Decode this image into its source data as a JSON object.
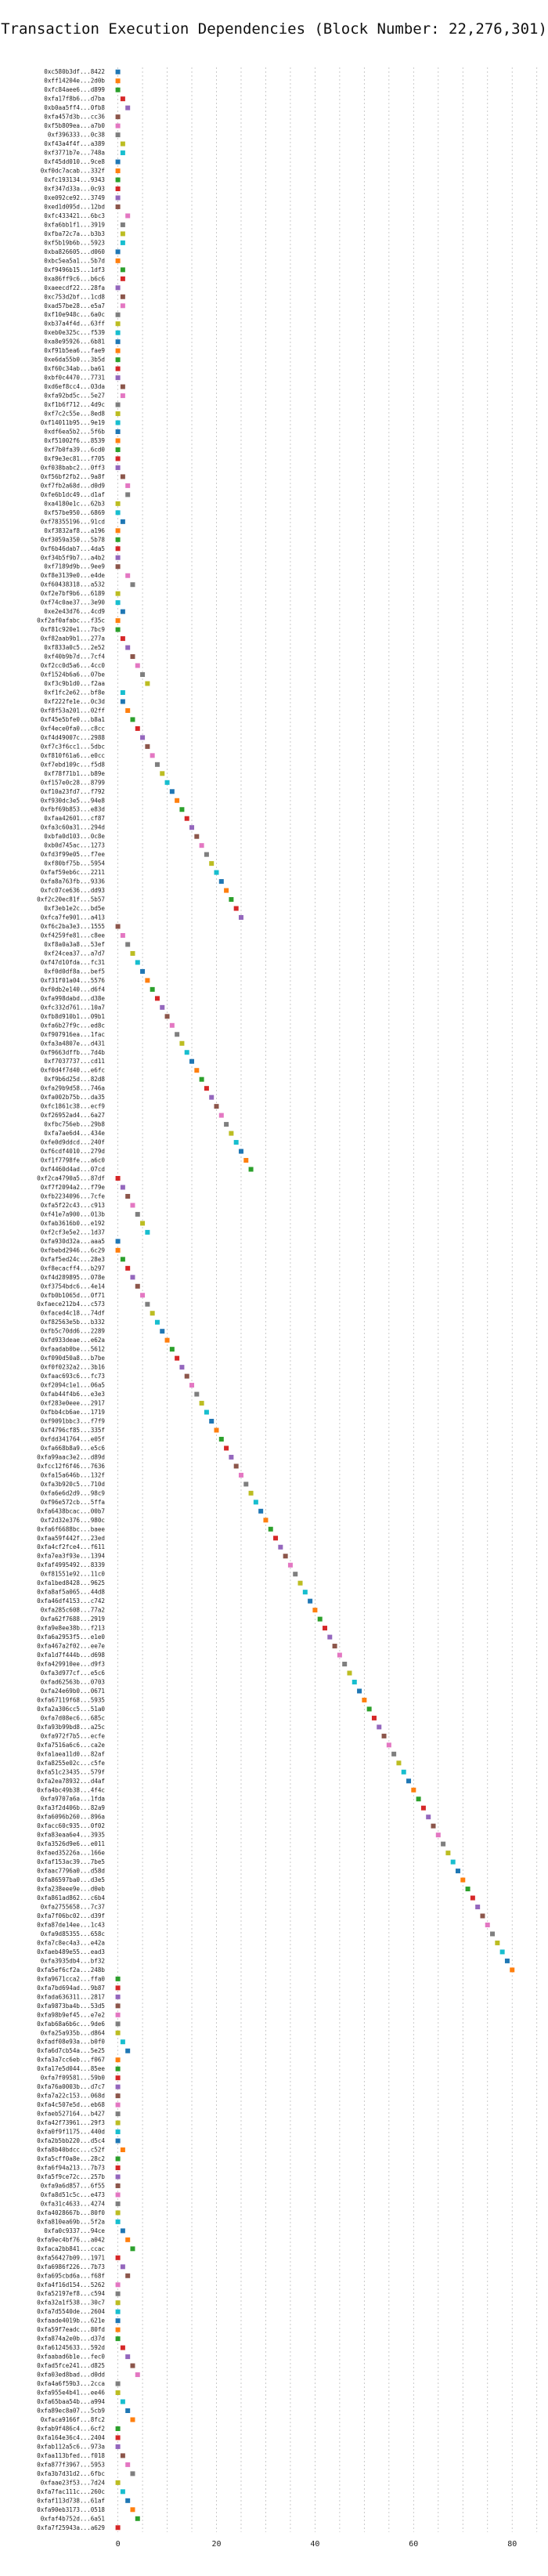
{
  "chart_data": {
    "type": "scatter",
    "title": "Transaction Execution Dependencies (Block Number: 22,276,301)",
    "xlabel": "",
    "ylabel": "",
    "xlim": [
      -2,
      86
    ],
    "xticks": [
      0,
      20,
      40,
      60,
      80
    ],
    "grid": true,
    "legend": "none",
    "colors": [
      "#1f77b4",
      "#ff7f0e",
      "#2ca02c",
      "#d62728",
      "#9467bd",
      "#8c564b",
      "#e377c2",
      "#7f7f7f",
      "#bcbd22",
      "#17becf"
    ],
    "categories": [
      "0xc580b3df...8422",
      "0xff14204e...2d0b",
      "0xfc84aee6...d899",
      "0xfa17f8b6...d7ba",
      "0xb0aa5ff4...0fb8",
      "0xfa457d3b...cc36",
      "0xf5b809ea...a7b0",
      "0xf396333...0c38",
      "0xf43a4f4f...a389",
      "0xf3771b7e...748a",
      "0xf45dd010...9ce8",
      "0xf0dc7acab...332f",
      "0xfc193134...9343",
      "0xf347d33a...0c93",
      "0xe092ce92...3749",
      "0xed1d095d...12bd",
      "0xfc433421...6bc3",
      "0xfa6bb1f1...3919",
      "0xfba72c7a...b3b3",
      "0xf5b19b6b...5923",
      "0xba826605...d060",
      "0xbc5ea5a1...5b7d",
      "0xf9496b15...1df3",
      "0xa86ff9c6...b6c6",
      "0xaeecdf22...28fa",
      "0xc753d2bf...1cd8",
      "0xad57be28...e5a7",
      "0xf10e948c...6a0c",
      "0xb37a4f4d...63ff",
      "0xeb0e325c...f539",
      "0xa8e95926...6b81",
      "0xf91b5ea6...fae9",
      "0xe6da55b0...3b5d",
      "0xf60c34ab...ba61",
      "0xbf0c4470...7731",
      "0xd6ef8cc4...03da",
      "0xfa92bd5c...5e27",
      "0xf1b6f712...4d9c",
      "0xf7c2c55e...8ed8",
      "0xf14011b95...9e19",
      "0xdf6ea5b2...5f6b",
      "0xf51002f6...8539",
      "0xf7b0fa39...6cd0",
      "0xf9e3ec81...f705",
      "0xf038babc2...0ff3",
      "0xf56bf2fb2...9a8f",
      "0xf7fb2a68d...d0d9",
      "0xfe6b1dc49...d1af",
      "0xa4180e1c...62b3",
      "0xf57be950...6869",
      "0xf78355196...91cd",
      "0xf3832af8...a196",
      "0xf3059a350...5b78",
      "0xf6b46dab7...4da5",
      "0xf34b5f9b7...a4b2",
      "0xf7189d9b...9ee9",
      "0xf8e3139e0...e4de",
      "0xf60438318...a532",
      "0xf2e7bf9b6...6189",
      "0xf74c0ae37...3e90",
      "0xe2e43d76...4cd9",
      "0xf2af0afabc...f35c",
      "0xf81c920e1...7bc9",
      "0xf82aab9b1...277a",
      "0xf833a0c5...2e52",
      "0xf40b9b7d...7cf4",
      "0xf2cc0d5a6...4cc0",
      "0xf1524b6a6...07be",
      "0xf3c9b1d0...f2aa",
      "0xf1fc2e62...bf8e",
      "0xf222fe1e...0c3d",
      "0xf8f53a201...02ff",
      "0xf45e5bfe0...b8a1",
      "0xf4ece0fa0...c8cc",
      "0xf4d49007c...2988",
      "0xf7c3f6cc1...5dbc",
      "0xf810f61a6...e0cc",
      "0xf7ebd109c...f5d8",
      "0xf78f71b1...b89e",
      "0xf157e0c28...8799",
      "0xf10a23fd7...f792",
      "0xf930dc3e5...94e8",
      "0xfbf69b853...e83d",
      "0xfaa42601...cf87",
      "0xfa3c60a31...294d",
      "0xbfa0d103...0c8e",
      "0xb0d745ac...1273",
      "0xfd3f99e05...f7ee",
      "0xf80bf75b...5954",
      "0xfaf59eb6c...2211",
      "0xfa8a763fb...9336",
      "0xfc07ce636...dd93",
      "0xf2c20ec81f...5b57",
      "0xf3eb1e2c...bd5e",
      "0xfca7fe901...a413",
      "0xf6c2ba3e3...1555",
      "0xf4259fe81...c8ee",
      "0xf8a0a3a8...53ef",
      "0xf24cea37...a7d7",
      "0xf47d10fda...fc31",
      "0xf0d0df8a...bef5",
      "0xf31f01a04...5576",
      "0xf0db2e140...d6f4",
      "0xfa998dabd...d38e",
      "0xfc332d761...10a7",
      "0xfb8d910b1...09b1",
      "0xfa6b27f9c...ed8c",
      "0xf907916ea...1fac",
      "0xfa3a4807e...d431",
      "0xf9663dffb...7d4b",
      "0xf7037737...cd11",
      "0xf0d4f7d40...e6fc",
      "0xf9b6d25d...82d8",
      "0xfa29b9d58...746a",
      "0xfa002b75b...da35",
      "0xfc1861c38...ecf9",
      "0xf26952ad4...6a27",
      "0xfbc756eb...29b8",
      "0xfa7ae6d4...434e",
      "0xfe0d9ddcd...240f",
      "0xf6cdf4010...279d",
      "0xf1f7798fe...a6c0",
      "0xf4460d4ad...07cd",
      "0xf2ca4790a5...87df",
      "0xf7f2094a2...f79e",
      "0xfb2234096...7cfe",
      "0xfa5f22c43...c913",
      "0xf41e7a900...013b",
      "0xfab3616b0...e192",
      "0xf2cf3e5e2...1d37",
      "0xfa930d32a...aaa5",
      "0xfbebd2946...6c29",
      "0xfaf5ed24c...28e3",
      "0xf8ecacff4...b297",
      "0xf4d289895...078e",
      "0xf3754bdc6...4e14",
      "0xfb0b1065d...0f71",
      "0xfaece212b4...c573",
      "0xfaced4c18...74df",
      "0xf82563e5b...b332",
      "0xfb5c70dd6...2289",
      "0xfd933deae...e62a",
      "0xfaadab0be...5612",
      "0xf090d50a8...b7be",
      "0xf0f0232a2...3b16",
      "0xfaac693c6...fc73",
      "0xf2094c1e1...06a5",
      "0xfab44f4b6...e3e3",
      "0xf283e0eee...2917",
      "0xfbb4cb6ae...1719",
      "0xf9091bbc3...f7f9",
      "0xf4796cf85...335f",
      "0xfdd341764...e05f",
      "0xfa668b8a9...e5c6",
      "0xfa99aac3e2...d89d",
      "0xfcc12f6f46...7636",
      "0xfa15a646b...132f",
      "0xfa3b920c5...710d",
      "0xfa6e6d2d9...98c9",
      "0xf96e572cb...5ffa",
      "0xfa6438bcac...00b7",
      "0xf2d32e376...980c",
      "0xfa6f6688bc...baee",
      "0xfaa59f442f...23ed",
      "0xfa4cf2fce4...f611",
      "0xfa7ea3f93e...1394",
      "0xfaf4995492...8339",
      "0xf81551e92...11c0",
      "0xfa1bed8428...9625",
      "0xfa8af5a065...44d8",
      "0xfa46df4153...c742",
      "0xfa285c608...77a2",
      "0xfa62f7688...2919",
      "0xfa9e8ee38b...f213",
      "0xfa6a2953f5...e1e0",
      "0xfa467a2f02...ee7e",
      "0xfa1d7f444b...d698",
      "0xfa429910ee...d9f3",
      "0xfa3d977cf...e5c6",
      "0xfad62563b...0703",
      "0xfa24e69b0...0671",
      "0xfa67119f68...5935",
      "0xfa2a306cc5...51a0",
      "0xfa7d08ec6...685c",
      "0xfa93b99bd8...a25c",
      "0xfa972f7b5...ecfe",
      "0xfa7516a6c6...ca2e",
      "0xfa1aea11d0...82af",
      "0xfa8255e02c...c5fe",
      "0xfa51c23435...579f",
      "0xfa2ea78932...d4af",
      "0xfa4bc49b38...4f4c",
      "0xfa9707a6a...1fda",
      "0xfa3f2d406b...82a9",
      "0xfa6096b260...896a",
      "0xfacc60c935...0f02",
      "0xfa83eaa6e4...3935",
      "0xfa3526d9e6...e011",
      "0xfaed35226a...166e",
      "0xfaf153ac39...7be5",
      "0xfaac7796a0...d58d",
      "0xfa86597ba0...d3e5",
      "0xfa238eee9e...d0eb",
      "0xfa861ad862...c6b4",
      "0xfa2755658...7c37",
      "0xfa7f06bc02...d39f",
      "0xfa87de14ee...1c43",
      "0xfa9d85355...658c",
      "0xfa7c8ec4a3...e42a",
      "0xfaeb489e55...ead3",
      "0xfa3935db4...bf32",
      "0xfa5ef6cf2a...248b",
      "0xfa9671cca2...ffa0",
      "0xfa7bd694ad...9b87",
      "0xfada636311...2817",
      "0xfa9873ba4b...53d5",
      "0xfa98b9ef45...e7e2",
      "0xfab68a6b6c...9de6",
      "0xfa25a935b...d864",
      "0xfadf08e93a...b0f0",
      "0xfa6d7cb54a...5e25",
      "0xfa3a7cc6eb...f067",
      "0xfa17e5d044...85ee",
      "0xfa7f09581...59b0",
      "0xfa76a0003b...d7c7",
      "0xfa7a22c153...068d",
      "0xfa4c507e5d...eb68",
      "0xfaeb527164...b427",
      "0xfa42f73961...29f3",
      "0xfa0f9f1175...440d",
      "0xfa2b5bb220...d5c4",
      "0xfa8b40bdcc...c52f",
      "0xfa5cff0a8e...28c2",
      "0xfa6f94a213...7b73",
      "0xfa5f9ce72c...257b",
      "0xfa9a6d857...6f55",
      "0xfa8d51c5c...e473",
      "0xfa31c4633...4274",
      "0xfa4028667b...80f0",
      "0xfa810ea69b...5f2a",
      "0xfa0c9337...94ce",
      "0xfa9ec4bf76...a042",
      "0xfaca2bb841...ccac",
      "0xfa56427b09...1971",
      "0xfa6986f226...7b73",
      "0xfa695cbd6a...f68f",
      "0xfa4f16d154...5262",
      "0xfa52197ef8...c594",
      "0xfa32a1f538...30c7",
      "0xfa7d5540de...2604",
      "0xfaade4019b...621e",
      "0xfa59f7eadc...80fd",
      "0xfa874a2e0b...d37d",
      "0xfa61245633...592d",
      "0xfaabad6b1e...fec0",
      "0xfad5fce241...d825",
      "0xfa03ed8bad...d0dd",
      "0xfa4a6f59b3...2cca",
      "0xfa955e4b41...ee46",
      "0xfa65baa54b...a994",
      "0xfa89ec8a07...5cb9",
      "0xfaca9166f...8fc2",
      "0xfab9f486c4...6cf2",
      "0xfa164e36c4...2404",
      "0xfab112a5c6...973a",
      "0xfaa113bfed...f018",
      "0xfa877f3967...5953",
      "0xfa3b7d31d2...6fbc",
      "0xfaae23f53...7d24",
      "0xfa7fac111c...260c",
      "0xfaf113d738...61af",
      "0xfa90eb3173...0518",
      "0xfaf4b752d...6a51",
      "0xfa7f25943a...a629"
    ],
    "x": [
      0,
      0,
      0,
      1,
      2,
      0,
      0,
      0,
      1,
      1,
      0,
      0,
      0,
      0,
      0,
      0,
      2,
      1,
      1,
      1,
      0,
      0,
      1,
      1,
      0,
      1,
      1,
      0,
      0,
      0,
      0,
      0,
      0,
      0,
      0,
      1,
      1,
      0,
      0,
      0,
      0,
      0,
      0,
      0,
      0,
      1,
      2,
      2,
      0,
      0,
      1,
      0,
      0,
      0,
      0,
      0,
      2,
      3,
      0,
      0,
      1,
      0,
      0,
      1,
      2,
      3,
      4,
      5,
      6,
      1,
      1,
      2,
      3,
      4,
      5,
      6,
      7,
      8,
      9,
      10,
      11,
      12,
      13,
      14,
      15,
      16,
      17,
      18,
      19,
      20,
      21,
      22,
      23,
      24,
      25,
      0,
      1,
      2,
      3,
      4,
      5,
      6,
      7,
      8,
      9,
      10,
      11,
      12,
      13,
      14,
      15,
      16,
      17,
      18,
      19,
      20,
      21,
      22,
      23,
      24,
      25,
      26,
      27,
      0,
      1,
      2,
      3,
      4,
      5,
      6,
      0,
      0,
      1,
      2,
      3,
      4,
      5,
      6,
      7,
      8,
      9,
      10,
      11,
      12,
      13,
      14,
      15,
      16,
      17,
      18,
      19,
      20,
      21,
      22,
      23,
      24,
      25,
      26,
      27,
      28,
      29,
      30,
      31,
      32,
      33,
      34,
      35,
      36,
      37,
      38,
      39,
      40,
      41,
      42,
      43,
      44,
      45,
      46,
      47,
      48,
      49,
      50,
      51,
      52,
      53,
      54,
      55,
      56,
      57,
      58,
      59,
      60,
      61,
      62,
      63,
      64,
      65,
      66,
      67,
      68,
      69,
      70,
      71,
      72,
      73,
      74,
      75,
      76,
      77,
      78,
      79,
      80,
      0,
      0,
      0,
      0,
      0,
      0,
      0,
      1,
      2,
      0,
      0,
      0,
      0,
      0,
      0,
      0,
      0,
      0,
      0,
      1,
      0,
      0,
      0,
      0,
      0,
      0,
      0,
      0,
      1,
      2,
      3,
      0,
      1,
      2,
      0,
      0,
      0,
      0,
      0,
      0,
      0,
      1,
      2,
      3,
      4,
      0,
      0,
      1,
      2,
      3,
      0,
      0,
      0,
      1,
      2,
      3,
      0,
      1,
      2,
      3,
      4,
      0
    ]
  }
}
